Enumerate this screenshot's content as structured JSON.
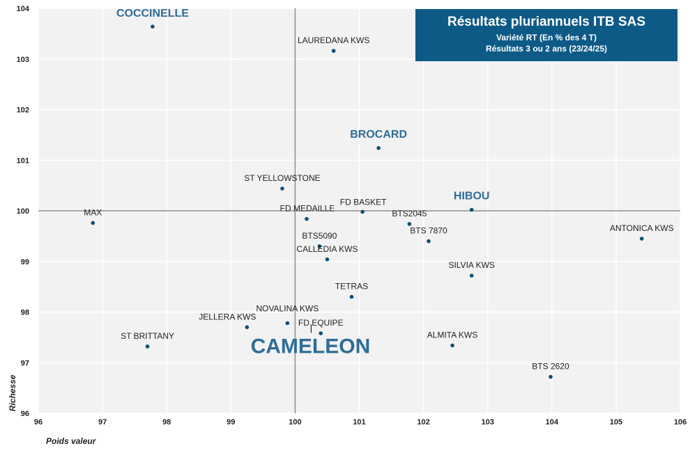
{
  "chart_data": {
    "type": "scatter",
    "title": "Résultats pluriannuels ITB SAS",
    "subtitle_lines": [
      "Variété RT (En % des 4 T)",
      "Résultats 3 ou 2 ans (23/24/25)"
    ],
    "xlabel": "Poids valeur",
    "ylabel": "Richesse",
    "xlim": [
      96,
      106
    ],
    "ylim": [
      96,
      104
    ],
    "x_ticks": [
      "96",
      "97",
      "98",
      "99",
      "100",
      "101",
      "102",
      "103",
      "104",
      "105",
      "106"
    ],
    "y_ticks": [
      "96",
      "97",
      "98",
      "99",
      "100",
      "101",
      "102",
      "103",
      "104"
    ],
    "reference_lines": {
      "x": 100,
      "y": 100
    },
    "grid": true,
    "point_color": "#0e4f73",
    "highlight_color": "#2d6d97",
    "points": [
      {
        "label": "COCCINELLE",
        "x": 97.78,
        "y": 103.64,
        "emphasis": "highlight"
      },
      {
        "label": "LAUREDANA KWS",
        "x": 100.6,
        "y": 103.16
      },
      {
        "label": "BROCARD",
        "x": 101.3,
        "y": 101.24,
        "emphasis": "highlight"
      },
      {
        "label": "ST YELLOWSTONE",
        "x": 99.8,
        "y": 100.44
      },
      {
        "label": "FD BASKET",
        "x": 101.05,
        "y": 99.98
      },
      {
        "label": "HIBOU",
        "x": 102.75,
        "y": 100.02,
        "emphasis": "highlight"
      },
      {
        "label": "MAX",
        "x": 96.85,
        "y": 99.76
      },
      {
        "label": "FD MEDAILLE",
        "x": 100.18,
        "y": 99.84
      },
      {
        "label": "BTS2045",
        "x": 101.78,
        "y": 99.74
      },
      {
        "label": "BTS 7870",
        "x": 102.08,
        "y": 99.4
      },
      {
        "label": "ANTONICA KWS",
        "x": 105.4,
        "y": 99.45
      },
      {
        "label": "BTS5090",
        "x": 100.38,
        "y": 99.3
      },
      {
        "label": "CALLEDIA KWS",
        "x": 100.5,
        "y": 99.04
      },
      {
        "label": "SILVIA KWS",
        "x": 102.75,
        "y": 98.72
      },
      {
        "label": "TETRAS",
        "x": 100.88,
        "y": 98.3
      },
      {
        "label": "NOVALINA KWS",
        "x": 99.88,
        "y": 97.78
      },
      {
        "label": "JELLERA KWS",
        "x": 99.25,
        "y": 97.7
      },
      {
        "label": "FD EQUIPE",
        "x": 100.4,
        "y": 97.58
      },
      {
        "label": "CAMELEON",
        "x": 100.25,
        "y": 97.7,
        "emphasis": "big"
      },
      {
        "label": "ST BRITTANY",
        "x": 97.7,
        "y": 97.32
      },
      {
        "label": "ALMITA KWS",
        "x": 102.45,
        "y": 97.34
      },
      {
        "label": "BTS 2620",
        "x": 103.98,
        "y": 96.72
      }
    ]
  }
}
